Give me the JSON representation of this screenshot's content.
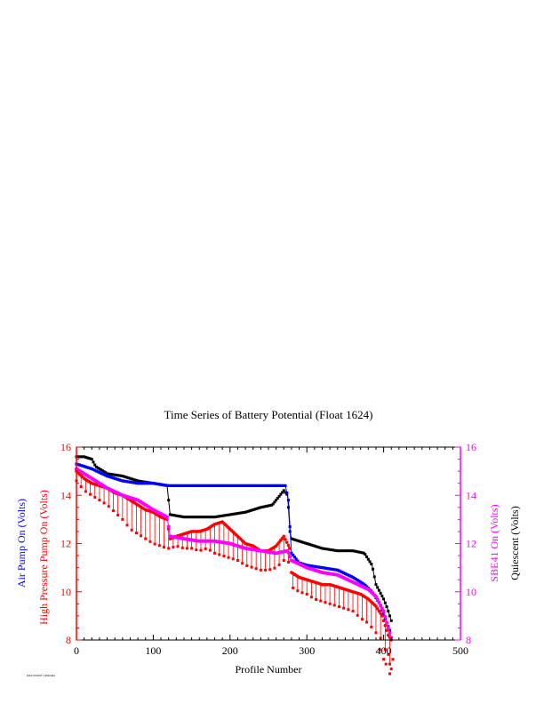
{
  "chart_data": {
    "type": "scatter",
    "title": "Time Series of Battery Potential (Float 1624)",
    "xlabel": "Profile Number",
    "xlim": [
      0,
      500
    ],
    "x_ticks": [
      "0",
      "100",
      "200",
      "300",
      "400",
      "500"
    ],
    "y_left": {
      "ylim": [
        8,
        16
      ],
      "ticks": [
        "8",
        "10",
        "12",
        "14",
        "16"
      ],
      "labels": [
        {
          "text": "Air Pump On (Volts)",
          "color": "#0000ff"
        },
        {
          "text": "High Pressure Pump On (Volts)",
          "color": "#ff0000"
        }
      ]
    },
    "y_right": {
      "ylim": [
        8,
        16
      ],
      "ticks": [
        "8",
        "10",
        "12",
        "14",
        "16"
      ],
      "labels": [
        {
          "text": "SBE41 On (Volts)",
          "color": "#ff00ff"
        },
        {
          "text": "Quiescent (Volts)",
          "color": "#000000"
        }
      ]
    },
    "series": [
      {
        "key": "quiescent",
        "color": "#000000",
        "points": [
          [
            0,
            15.6
          ],
          [
            10,
            15.6
          ],
          [
            20,
            15.5
          ],
          [
            25,
            15.2
          ],
          [
            40,
            14.9
          ],
          [
            60,
            14.8
          ],
          [
            80,
            14.6
          ],
          [
            100,
            14.5
          ],
          [
            118,
            14.4
          ],
          [
            122,
            13.2
          ],
          [
            140,
            13.1
          ],
          [
            160,
            13.1
          ],
          [
            180,
            13.1
          ],
          [
            200,
            13.2
          ],
          [
            220,
            13.3
          ],
          [
            240,
            13.5
          ],
          [
            255,
            13.6
          ],
          [
            265,
            14.0
          ],
          [
            270,
            14.2
          ],
          [
            275,
            14.0
          ],
          [
            278,
            12.5
          ],
          [
            280,
            12.2
          ],
          [
            300,
            12.0
          ],
          [
            320,
            11.8
          ],
          [
            340,
            11.7
          ],
          [
            360,
            11.7
          ],
          [
            375,
            11.6
          ],
          [
            385,
            11.1
          ],
          [
            390,
            10.3
          ],
          [
            400,
            9.7
          ],
          [
            405,
            9.3
          ],
          [
            410,
            8.8
          ]
        ]
      },
      {
        "key": "air_pump",
        "color": "#0000ff",
        "points": [
          [
            0,
            15.3
          ],
          [
            20,
            15.1
          ],
          [
            40,
            14.8
          ],
          [
            60,
            14.6
          ],
          [
            80,
            14.5
          ],
          [
            100,
            14.5
          ],
          [
            120,
            14.4
          ],
          [
            150,
            14.4
          ],
          [
            180,
            14.4
          ],
          [
            210,
            14.4
          ],
          [
            240,
            14.4
          ],
          [
            260,
            14.4
          ],
          [
            272,
            14.4
          ],
          [
            276,
            13.8
          ],
          [
            280,
            11.6
          ],
          [
            290,
            11.2
          ],
          [
            300,
            11.1
          ],
          [
            320,
            11.0
          ],
          [
            340,
            10.9
          ],
          [
            360,
            10.6
          ],
          [
            375,
            10.3
          ],
          [
            385,
            10.0
          ],
          [
            395,
            9.5
          ],
          [
            403,
            8.8
          ],
          [
            408,
            8.4
          ]
        ]
      },
      {
        "key": "sbe41",
        "color": "#ff00ff",
        "points": [
          [
            0,
            15.1
          ],
          [
            20,
            14.7
          ],
          [
            40,
            14.3
          ],
          [
            60,
            14.0
          ],
          [
            80,
            13.8
          ],
          [
            100,
            13.4
          ],
          [
            118,
            13.1
          ],
          [
            122,
            12.3
          ],
          [
            140,
            12.2
          ],
          [
            160,
            12.1
          ],
          [
            180,
            12.1
          ],
          [
            200,
            12.0
          ],
          [
            220,
            11.8
          ],
          [
            240,
            11.7
          ],
          [
            260,
            11.6
          ],
          [
            275,
            11.7
          ],
          [
            280,
            11.3
          ],
          [
            300,
            11.0
          ],
          [
            320,
            10.8
          ],
          [
            340,
            10.7
          ],
          [
            360,
            10.4
          ],
          [
            380,
            10.1
          ],
          [
            390,
            9.8
          ],
          [
            400,
            9.2
          ],
          [
            405,
            8.6
          ],
          [
            410,
            8.1
          ]
        ]
      },
      {
        "key": "high_pressure_pump",
        "color": "#ff0000",
        "low_color": "#ff0000",
        "points": [
          [
            0,
            15.0,
            14.6
          ],
          [
            10,
            14.7,
            14.2
          ],
          [
            20,
            14.5,
            14.0
          ],
          [
            30,
            14.4,
            13.8
          ],
          [
            40,
            14.3,
            13.6
          ],
          [
            50,
            14.1,
            13.3
          ],
          [
            60,
            14.0,
            13.0
          ],
          [
            70,
            13.8,
            12.6
          ],
          [
            80,
            13.6,
            12.4
          ],
          [
            90,
            13.4,
            12.2
          ],
          [
            100,
            13.3,
            12.0
          ],
          [
            110,
            13.1,
            11.9
          ],
          [
            118,
            13.0,
            11.8
          ],
          [
            122,
            12.2,
            11.8
          ],
          [
            130,
            12.3,
            11.9
          ],
          [
            140,
            12.4,
            11.8
          ],
          [
            150,
            12.5,
            11.8
          ],
          [
            160,
            12.5,
            11.7
          ],
          [
            170,
            12.6,
            11.8
          ],
          [
            180,
            12.8,
            11.6
          ],
          [
            190,
            12.9,
            11.5
          ],
          [
            200,
            12.6,
            11.4
          ],
          [
            210,
            12.3,
            11.3
          ],
          [
            220,
            12.0,
            11.1
          ],
          [
            230,
            11.9,
            11.0
          ],
          [
            240,
            11.7,
            10.9
          ],
          [
            250,
            11.7,
            10.9
          ],
          [
            260,
            11.9,
            11.0
          ],
          [
            270,
            12.3,
            11.3
          ],
          [
            278,
            11.8,
            11.2
          ],
          [
            280,
            10.8,
            10.2
          ],
          [
            290,
            10.6,
            10.0
          ],
          [
            300,
            10.5,
            9.9
          ],
          [
            310,
            10.4,
            9.7
          ],
          [
            320,
            10.3,
            9.6
          ],
          [
            330,
            10.3,
            9.5
          ],
          [
            340,
            10.2,
            9.4
          ],
          [
            350,
            10.1,
            9.3
          ],
          [
            360,
            10.0,
            9.2
          ],
          [
            370,
            9.9,
            8.9
          ],
          [
            380,
            9.7,
            8.7
          ],
          [
            390,
            9.4,
            8.3
          ],
          [
            398,
            9.0,
            8.0
          ],
          [
            402,
            8.6,
            7.6
          ],
          [
            406,
            8.2,
            7.2
          ],
          [
            410,
            8.0,
            6.8
          ]
        ]
      }
    ],
    "outliers_red": [
      [
        395,
        7.6
      ],
      [
        400,
        7.2
      ],
      [
        403,
        7.0
      ],
      [
        406,
        7.4
      ],
      [
        410,
        6.8
      ],
      [
        408,
        6.6
      ],
      [
        412,
        7.2
      ]
    ]
  },
  "footnote": "MAX 070207 / 0X02044"
}
